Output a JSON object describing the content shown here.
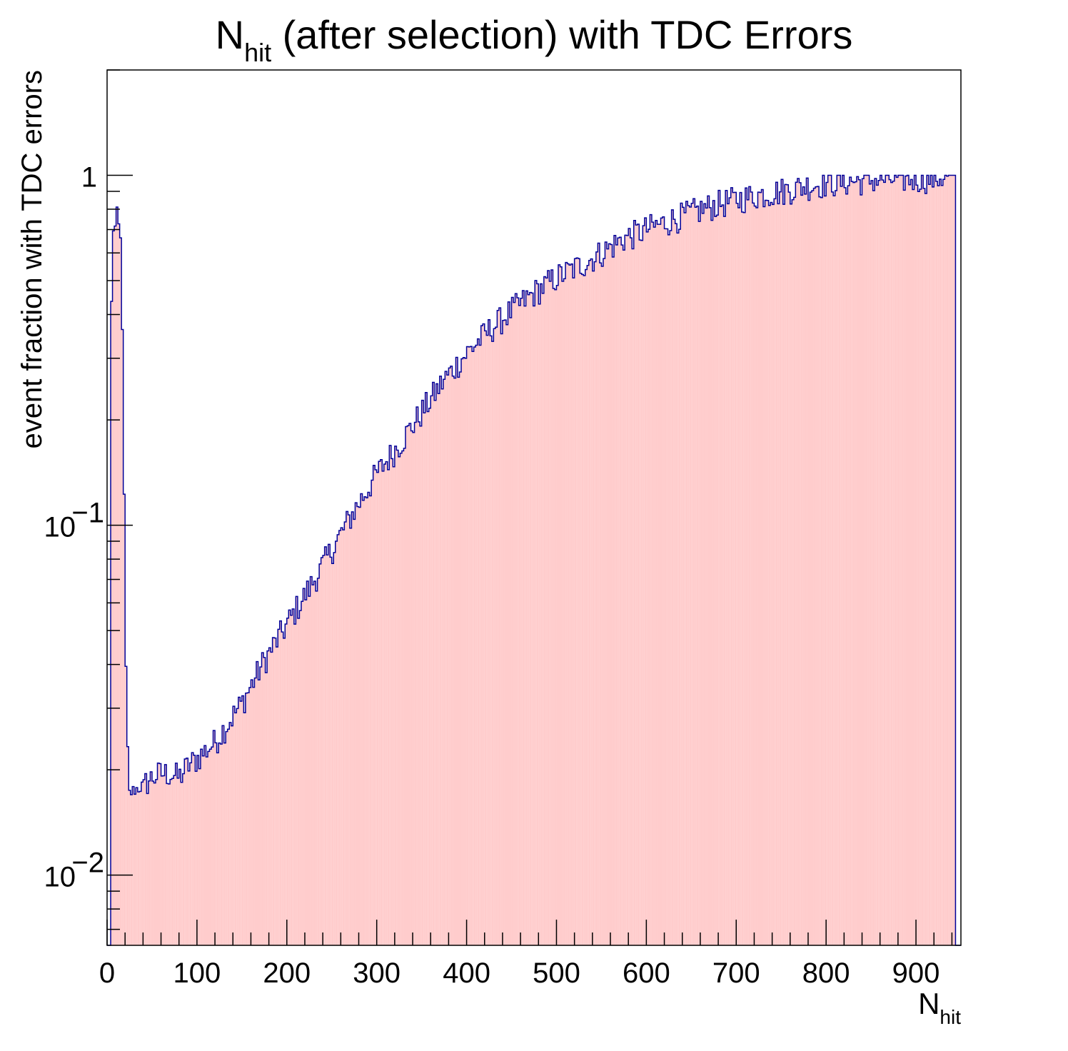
{
  "chart_data": {
    "type": "bar",
    "histogram": true,
    "title": {
      "main": "N",
      "main_sub": "hit",
      "rest": " (after selection) with TDC Errors"
    },
    "xlabel": {
      "main": "N",
      "sub": "hit"
    },
    "ylabel": "event fraction with TDC errors",
    "xlim": [
      0,
      950
    ],
    "ylim": [
      0.0063,
      2.0
    ],
    "yscale": "log",
    "bin_width": 2,
    "x_tick_labels": [
      "0",
      "100",
      "200",
      "300",
      "400",
      "500",
      "600",
      "700",
      "800",
      "900"
    ],
    "x_ticks": [
      0,
      100,
      200,
      300,
      400,
      500,
      600,
      700,
      800,
      900
    ],
    "y_ticks": [
      {
        "value": 1,
        "label": "1",
        "exp": ""
      },
      {
        "value": 0.1,
        "label": "10",
        "exp": "−1"
      },
      {
        "value": 0.01,
        "label": "10",
        "exp": "−2"
      }
    ],
    "fill_color": "#ffcccc",
    "line_color": "#000099",
    "grid": false,
    "legend": "none",
    "trend_points": [
      [
        0,
        0.0063
      ],
      [
        6,
        1.0
      ],
      [
        8,
        0.5
      ],
      [
        10,
        1.0
      ],
      [
        12,
        0.6
      ],
      [
        14,
        0.85
      ],
      [
        16,
        0.5
      ],
      [
        18,
        0.28
      ],
      [
        20,
        0.05
      ],
      [
        22,
        0.03
      ],
      [
        24,
        0.017
      ],
      [
        30,
        0.0175
      ],
      [
        40,
        0.018
      ],
      [
        50,
        0.019
      ],
      [
        60,
        0.0195
      ],
      [
        70,
        0.0195
      ],
      [
        80,
        0.019
      ],
      [
        90,
        0.0205
      ],
      [
        100,
        0.0215
      ],
      [
        120,
        0.024
      ],
      [
        150,
        0.031
      ],
      [
        175,
        0.041
      ],
      [
        200,
        0.052
      ],
      [
        225,
        0.066
      ],
      [
        250,
        0.085
      ],
      [
        275,
        0.11
      ],
      [
        300,
        0.14
      ],
      [
        325,
        0.17
      ],
      [
        350,
        0.21
      ],
      [
        375,
        0.26
      ],
      [
        400,
        0.31
      ],
      [
        425,
        0.36
      ],
      [
        450,
        0.41
      ],
      [
        475,
        0.46
      ],
      [
        500,
        0.51
      ],
      [
        525,
        0.55
      ],
      [
        550,
        0.6
      ],
      [
        575,
        0.66
      ],
      [
        600,
        0.7
      ],
      [
        625,
        0.74
      ],
      [
        650,
        0.78
      ],
      [
        675,
        0.82
      ],
      [
        700,
        0.85
      ],
      [
        725,
        0.88
      ],
      [
        750,
        0.9
      ],
      [
        775,
        0.93
      ],
      [
        800,
        0.95
      ],
      [
        850,
        0.97
      ],
      [
        900,
        0.98
      ],
      [
        920,
        0.98
      ],
      [
        936,
        1.0
      ]
    ],
    "nonzero_range": [
      4,
      944
    ],
    "noise_fraction": 0.06
  }
}
